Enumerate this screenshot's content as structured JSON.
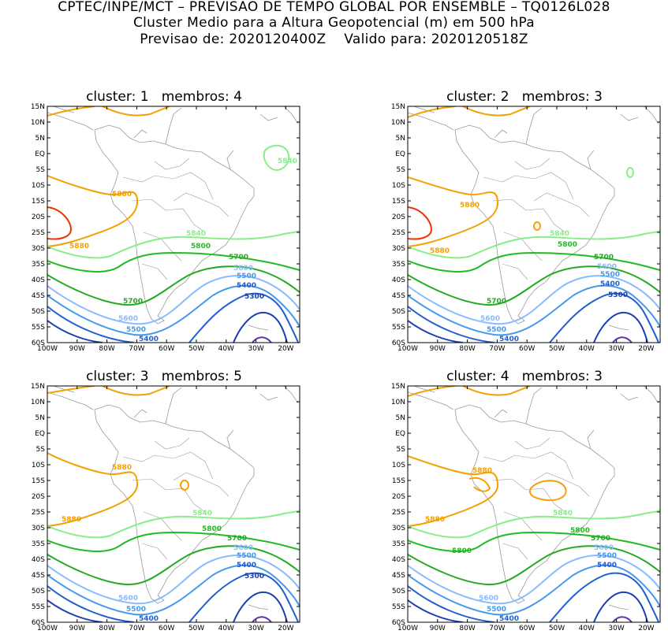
{
  "header": {
    "line1": "CPTEC/INPE/MCT – PREVISAO DE TEMPO GLOBAL POR ENSEMBLE – TQ0126L028",
    "line2": "Cluster Medio para a Altura Geopotencial (m) em 500 hPa",
    "line3": "Previsao de: 2020120400Z    Valido para: 2020120518Z"
  },
  "axes": {
    "lat_labels": [
      "15N",
      "10N",
      "5N",
      "EQ",
      "5S",
      "10S",
      "15S",
      "20S",
      "25S",
      "30S",
      "35S",
      "40S",
      "45S",
      "50S",
      "55S",
      "60S"
    ],
    "lon_labels": [
      "100W",
      "90W",
      "80W",
      "70W",
      "60W",
      "50W",
      "40W",
      "30W",
      "20W"
    ]
  },
  "colors": {
    "c5880": "#f5a000",
    "c5840": "#88ee88",
    "c5800": "#22bb22",
    "c5700": "#22aa22",
    "c5600": "#88bbff",
    "c5500": "#4499ee",
    "c5400": "#1f5fd0",
    "c5300": "#1a3fb0",
    "c5920": "#ee3300",
    "c5200": "#6030b0",
    "coast": "#9a9a9a"
  },
  "panels": [
    {
      "title": "cluster: 1   membros: 4",
      "labels": {
        "l5880a": "5880",
        "l5880b": "5880",
        "l5840a": "5840",
        "l5840b": "5840",
        "l5800": "5800",
        "l5700a": "5700",
        "l5700b": "5700",
        "l5600a": "5600",
        "l5600b": "5600",
        "l5500a": "5500",
        "l5500b": "5500",
        "l5400a": "5400",
        "l5400b": "5400",
        "l5300": "5300"
      }
    },
    {
      "title": "cluster: 2   membros: 3",
      "labels": {
        "l5880a": "5880",
        "l5880b": "5880",
        "l5840a": "",
        "l5840b": "5840",
        "l5800": "5800",
        "l5700a": "5700",
        "l5700b": "5700",
        "l5600a": "5600",
        "l5600b": "5600",
        "l5500a": "5500",
        "l5500b": "5500",
        "l5400a": "5400",
        "l5400b": "5400",
        "l5300": "5300"
      }
    },
    {
      "title": "cluster: 3   membros: 5",
      "labels": {
        "l5880a": "5880",
        "l5880b": "5880",
        "l5840a": "",
        "l5840b": "5840",
        "l5800": "5800",
        "l5700a": "5700",
        "l5700b": "",
        "l5600a": "5600",
        "l5600b": "5600",
        "l5500a": "5500",
        "l5500b": "5500",
        "l5400a": "5400",
        "l5400b": "5400",
        "l5300": "5300"
      }
    },
    {
      "title": "cluster: 4   membros: 3",
      "labels": {
        "l5880a": "5880",
        "l5880b": "5880",
        "l5840a": "",
        "l5840b": "5840",
        "l5800": "5800",
        "l5700a": "5700",
        "l5700b": "5800",
        "l5600a": "5600",
        "l5600b": "5600",
        "l5500a": "5500",
        "l5500b": "5500",
        "l5400a": "5400",
        "l5400b": "5400",
        "l5300": ""
      }
    }
  ]
}
